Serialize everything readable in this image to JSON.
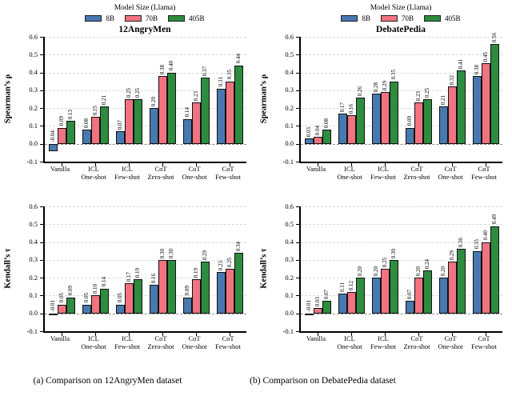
{
  "page": {
    "captions": [
      "(a) Comparison on 12AngryMen dataset",
      "(b) Comparison on DebatePedia dataset"
    ]
  },
  "legend": {
    "title": "Model Size (Llama)",
    "entries": [
      {
        "label": "8B",
        "color": "#4878b0"
      },
      {
        "label": "70B",
        "color": "#f0737f"
      },
      {
        "label": "405B",
        "color": "#2e8c3f"
      }
    ]
  },
  "colors": {
    "grid": "#d9d9d9",
    "zero_line": "#8c8c8c",
    "bar_edge": "#111111"
  },
  "chart_data": [
    {
      "type": "bar",
      "title": "12AngryMen",
      "ylabel": "Spearman’s ρ",
      "ylim": [
        -0.1,
        0.6
      ],
      "yticks": [
        0.6,
        0.5,
        0.4,
        0.3,
        0.2,
        0.1,
        0.0,
        -0.1
      ],
      "grid": "horizontal-dashed",
      "legend_position": "above",
      "categories": [
        [
          "Vanilla"
        ],
        [
          "ICL",
          "One-shot"
        ],
        [
          "ICL",
          "Few-shot"
        ],
        [
          "CoT",
          "Zero-shot"
        ],
        [
          "CoT",
          "One-shot"
        ],
        [
          "CoT",
          "Few-shot"
        ]
      ],
      "series": [
        {
          "name": "8B",
          "color": "#4878b0",
          "values": [
            -0.04,
            0.08,
            0.07,
            0.2,
            0.14,
            0.31
          ]
        },
        {
          "name": "70B",
          "color": "#f0737f",
          "values": [
            0.09,
            0.15,
            0.25,
            0.38,
            0.23,
            0.35
          ]
        },
        {
          "name": "405B",
          "color": "#2e8c3f",
          "values": [
            0.13,
            0.21,
            0.25,
            0.4,
            0.37,
            0.44
          ]
        }
      ]
    },
    {
      "type": "bar",
      "title": "DebatePedia",
      "ylabel": "Spearman’s ρ",
      "ylim": [
        -0.1,
        0.6
      ],
      "yticks": [
        0.6,
        0.5,
        0.4,
        0.3,
        0.2,
        0.1,
        0.0,
        -0.1
      ],
      "grid": "horizontal-dashed",
      "legend_position": "above",
      "categories": [
        [
          "Vanilla"
        ],
        [
          "ICL",
          "One-shot"
        ],
        [
          "ICL",
          "Few-shot"
        ],
        [
          "CoT",
          "Zero-shot"
        ],
        [
          "CoT",
          "One-shot"
        ],
        [
          "CoT",
          "Few-shot"
        ]
      ],
      "series": [
        {
          "name": "8B",
          "color": "#4878b0",
          "values": [
            0.03,
            0.17,
            0.28,
            0.09,
            0.21,
            0.38
          ]
        },
        {
          "name": "70B",
          "color": "#f0737f",
          "values": [
            0.04,
            0.16,
            0.29,
            0.23,
            0.32,
            0.45
          ]
        },
        {
          "name": "405B",
          "color": "#2e8c3f",
          "values": [
            0.08,
            0.26,
            0.35,
            0.25,
            0.41,
            0.56
          ]
        }
      ]
    },
    {
      "type": "bar",
      "title": "",
      "ylabel": "Kendall’s τ",
      "ylim": [
        -0.1,
        0.6
      ],
      "yticks": [
        0.6,
        0.5,
        0.4,
        0.3,
        0.2,
        0.1,
        0.0,
        -0.1
      ],
      "grid": "horizontal-dashed",
      "legend_position": "none",
      "categories": [
        [
          "Vanilla"
        ],
        [
          "ICL",
          "One-shot"
        ],
        [
          "ICL",
          "Few-shot"
        ],
        [
          "CoT",
          "Zero-shot"
        ],
        [
          "CoT",
          "One-shot"
        ],
        [
          "CoT",
          "Few-shot"
        ]
      ],
      "series": [
        {
          "name": "8B",
          "color": "#4878b0",
          "values": [
            -0.01,
            0.05,
            0.05,
            0.16,
            0.09,
            0.23
          ]
        },
        {
          "name": "70B",
          "color": "#f0737f",
          "values": [
            0.05,
            0.1,
            0.17,
            0.3,
            0.19,
            0.25
          ]
        },
        {
          "name": "405B",
          "color": "#2e8c3f",
          "values": [
            0.09,
            0.14,
            0.19,
            0.3,
            0.29,
            0.34
          ]
        }
      ]
    },
    {
      "type": "bar",
      "title": "",
      "ylabel": "Kendall’s τ",
      "ylim": [
        -0.1,
        0.6
      ],
      "yticks": [
        0.6,
        0.5,
        0.4,
        0.3,
        0.2,
        0.1,
        0.0,
        -0.1
      ],
      "grid": "horizontal-dashed",
      "legend_position": "none",
      "categories": [
        [
          "Vanilla"
        ],
        [
          "ICL",
          "One-shot"
        ],
        [
          "ICL",
          "Few-shot"
        ],
        [
          "CoT",
          "Zero-shot"
        ],
        [
          "CoT",
          "One-shot"
        ],
        [
          "CoT",
          "Few-shot"
        ]
      ],
      "series": [
        {
          "name": "8B",
          "color": "#4878b0",
          "values": [
            -0.01,
            0.11,
            0.2,
            0.07,
            0.2,
            0.35
          ]
        },
        {
          "name": "70B",
          "color": "#f0737f",
          "values": [
            0.03,
            0.12,
            0.25,
            0.2,
            0.29,
            0.4
          ]
        },
        {
          "name": "405B",
          "color": "#2e8c3f",
          "values": [
            0.07,
            0.2,
            0.3,
            0.24,
            0.36,
            0.49
          ]
        }
      ]
    }
  ]
}
